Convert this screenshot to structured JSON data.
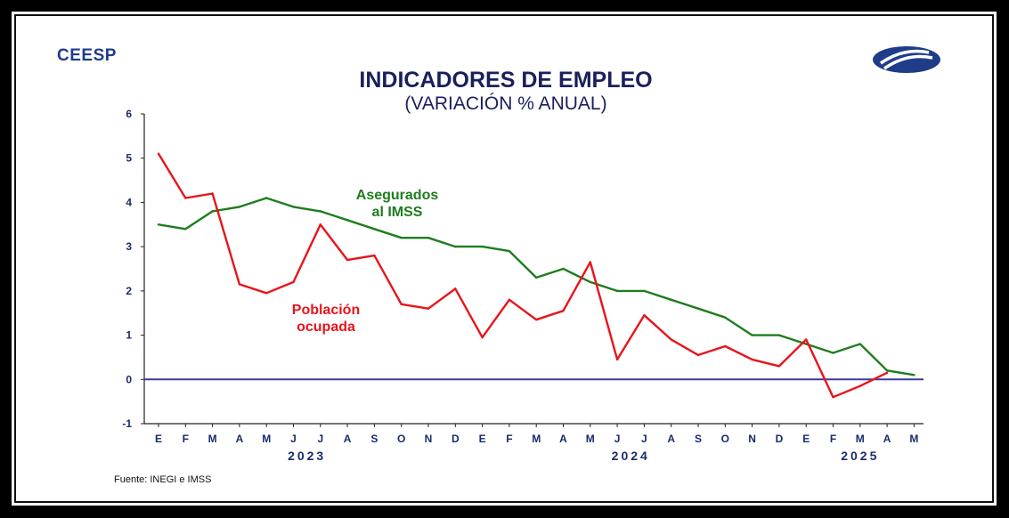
{
  "logo": {
    "text": "CEESP"
  },
  "source": "Fuente: INEGI e IMSS",
  "chart_data": {
    "type": "line",
    "title": "INDICADORES DE EMPLEO",
    "subtitle": "(VARIACIÓN % ANUAL)",
    "categories": [
      "E",
      "F",
      "M",
      "A",
      "M",
      "J",
      "J",
      "A",
      "S",
      "O",
      "N",
      "D",
      "E",
      "F",
      "M",
      "A",
      "M",
      "J",
      "J",
      "A",
      "S",
      "O",
      "N",
      "D",
      "E",
      "F",
      "M",
      "A",
      "M"
    ],
    "years": [
      {
        "label": "2023",
        "start": 0,
        "end": 11
      },
      {
        "label": "2024",
        "start": 12,
        "end": 23
      },
      {
        "label": "2025",
        "start": 24,
        "end": 28
      }
    ],
    "ylim": [
      -1,
      6
    ],
    "yticks": [
      -1,
      0,
      1,
      2,
      3,
      4,
      5,
      6
    ],
    "grid": false,
    "series": [
      {
        "name": "Asegurados al IMSS",
        "label_lines": [
          "Asegurados",
          "al IMSS"
        ],
        "color": "#1e7d1e",
        "values": [
          3.5,
          3.4,
          3.8,
          3.9,
          4.1,
          3.9,
          3.8,
          3.6,
          3.4,
          3.2,
          3.2,
          3.0,
          3.0,
          2.9,
          2.3,
          2.5,
          2.2,
          2.0,
          2.0,
          1.8,
          1.6,
          1.4,
          1.0,
          1.0,
          0.8,
          0.6,
          0.8,
          0.2,
          0.1
        ]
      },
      {
        "name": "Población ocupada",
        "label_lines": [
          "Población",
          "ocupada"
        ],
        "color": "#e8141b",
        "values": [
          5.1,
          4.1,
          4.2,
          2.15,
          1.95,
          2.2,
          3.5,
          2.7,
          2.8,
          1.7,
          1.6,
          2.05,
          0.95,
          1.8,
          1.35,
          1.55,
          2.65,
          0.45,
          1.45,
          0.9,
          0.55,
          0.75,
          0.45,
          0.3,
          0.9,
          -0.4,
          -0.15,
          0.15,
          null
        ]
      }
    ],
    "zero_line_color": "#3b3b9e"
  }
}
